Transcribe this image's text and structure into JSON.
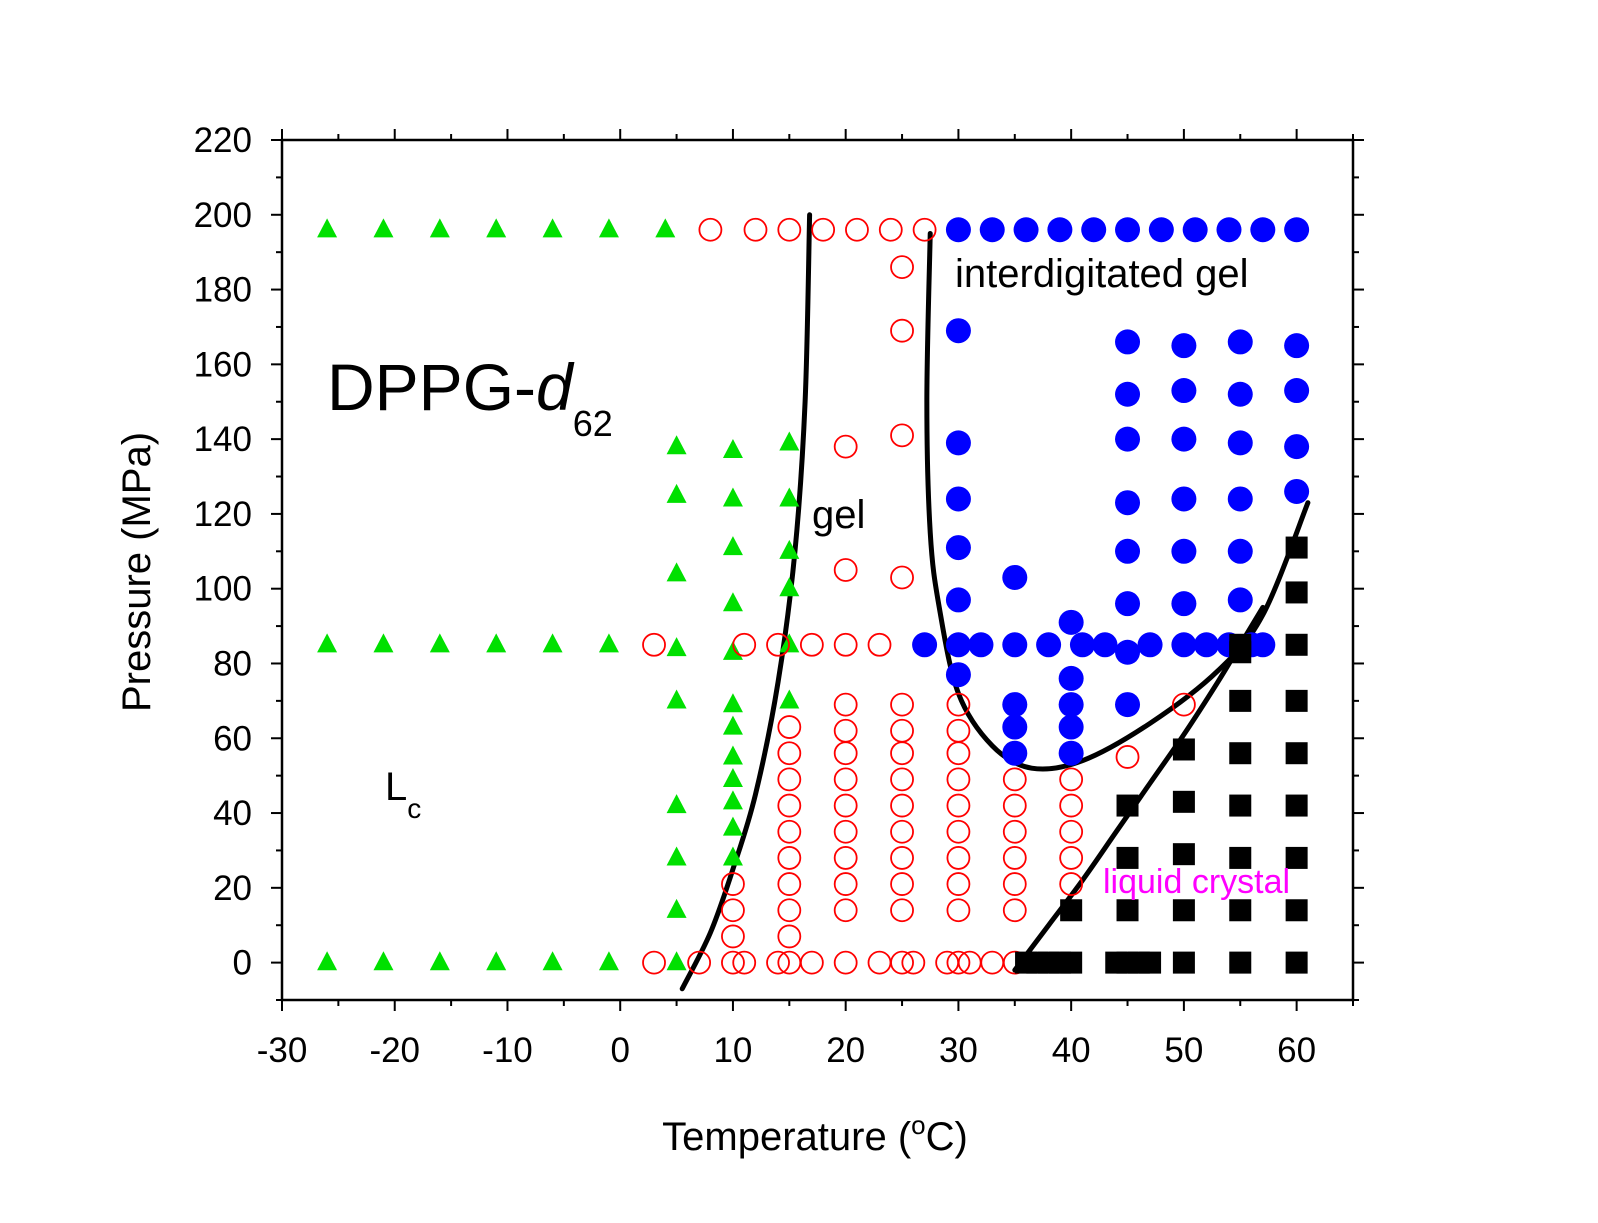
{
  "chart_data": {
    "type": "scatter",
    "title": "",
    "xlabel": "Temperature (",
    "xlabel_degree": "o",
    "xlabel_unit": "C)",
    "ylabel": "Pressure (MPa)",
    "xlim": [
      -30,
      65
    ],
    "ylim": [
      -10,
      220
    ],
    "x_ticks": [
      "-30",
      "-20",
      "-10",
      "0",
      "10",
      "20",
      "30",
      "40",
      "50",
      "60"
    ],
    "y_ticks": [
      "0",
      "20",
      "40",
      "60",
      "80",
      "100",
      "120",
      "140",
      "160",
      "180",
      "200",
      "220"
    ],
    "grid": false,
    "legend": "none",
    "sample_label": {
      "main": "DPPG-",
      "italic": "d",
      "subscript": "62"
    },
    "annotations": {
      "interdigitated": "interdigitated gel",
      "gel": "gel",
      "lc_main": "L",
      "lc_sub": "c",
      "liquid_crystal": "liquid crystal"
    },
    "colors": {
      "lc_phase": "#00e000",
      "gel_phase": "#ff0000",
      "interdigitated_phase": "#0000ff",
      "liquid_crystal_phase": "#000000",
      "liquid_crystal_label": "#ff00ff",
      "boundary": "#000000"
    },
    "series": [
      {
        "marker": "triangle",
        "color": "#00e000",
        "points": [
          [
            -26,
            196
          ],
          [
            -21,
            196
          ],
          [
            -16,
            196
          ],
          [
            -11,
            196
          ],
          [
            -6,
            196
          ],
          [
            -1,
            196
          ],
          [
            4,
            196
          ],
          [
            -26,
            85
          ],
          [
            -21,
            85
          ],
          [
            -16,
            85
          ],
          [
            -11,
            85
          ],
          [
            -6,
            85
          ],
          [
            -1,
            85
          ],
          [
            -26,
            0
          ],
          [
            -21,
            0
          ],
          [
            -16,
            0
          ],
          [
            -11,
            0
          ],
          [
            -6,
            0
          ],
          [
            -1,
            0
          ],
          [
            5,
            0
          ],
          [
            5,
            138
          ],
          [
            10,
            137
          ],
          [
            15,
            139
          ],
          [
            5,
            125
          ],
          [
            10,
            124
          ],
          [
            15,
            124
          ],
          [
            10,
            111
          ],
          [
            15,
            110
          ],
          [
            5,
            104
          ],
          [
            15,
            100
          ],
          [
            10,
            96
          ],
          [
            5,
            84
          ],
          [
            10,
            83
          ],
          [
            15,
            85
          ],
          [
            5,
            70
          ],
          [
            10,
            69
          ],
          [
            15,
            70
          ],
          [
            10,
            63
          ],
          [
            10,
            55
          ],
          [
            10,
            49
          ],
          [
            5,
            42
          ],
          [
            10,
            43
          ],
          [
            10,
            36
          ],
          [
            5,
            28
          ],
          [
            10,
            28
          ],
          [
            5,
            14
          ]
        ]
      },
      {
        "marker": "open-circle",
        "color": "#ff0000",
        "points": [
          [
            8,
            196
          ],
          [
            12,
            196
          ],
          [
            15,
            196
          ],
          [
            18,
            196
          ],
          [
            21,
            196
          ],
          [
            24,
            196
          ],
          [
            27,
            196
          ],
          [
            25,
            186
          ],
          [
            25,
            169
          ],
          [
            25,
            141
          ],
          [
            20,
            138
          ],
          [
            20,
            105
          ],
          [
            25,
            103
          ],
          [
            3,
            85
          ],
          [
            11,
            85
          ],
          [
            14,
            85
          ],
          [
            17,
            85
          ],
          [
            20,
            85
          ],
          [
            23,
            85
          ],
          [
            15,
            63
          ],
          [
            20,
            69
          ],
          [
            25,
            69
          ],
          [
            30,
            69
          ],
          [
            15,
            56
          ],
          [
            20,
            62
          ],
          [
            25,
            62
          ],
          [
            30,
            62
          ],
          [
            15,
            49
          ],
          [
            20,
            56
          ],
          [
            25,
            56
          ],
          [
            30,
            56
          ],
          [
            15,
            42
          ],
          [
            20,
            49
          ],
          [
            25,
            49
          ],
          [
            30,
            49
          ],
          [
            35,
            49
          ],
          [
            40,
            49
          ],
          [
            15,
            35
          ],
          [
            20,
            42
          ],
          [
            25,
            42
          ],
          [
            30,
            42
          ],
          [
            35,
            42
          ],
          [
            40,
            42
          ],
          [
            15,
            28
          ],
          [
            20,
            35
          ],
          [
            25,
            35
          ],
          [
            30,
            35
          ],
          [
            35,
            35
          ],
          [
            40,
            35
          ],
          [
            10,
            21
          ],
          [
            15,
            21
          ],
          [
            20,
            28
          ],
          [
            25,
            28
          ],
          [
            30,
            28
          ],
          [
            35,
            28
          ],
          [
            40,
            28
          ],
          [
            10,
            14
          ],
          [
            15,
            14
          ],
          [
            20,
            21
          ],
          [
            25,
            21
          ],
          [
            30,
            21
          ],
          [
            35,
            21
          ],
          [
            40,
            21
          ],
          [
            10,
            7
          ],
          [
            15,
            7
          ],
          [
            20,
            14
          ],
          [
            25,
            14
          ],
          [
            30,
            14
          ],
          [
            35,
            14
          ],
          [
            45,
            55
          ],
          [
            50,
            69
          ],
          [
            3,
            0
          ],
          [
            7,
            0
          ],
          [
            10,
            0
          ],
          [
            11,
            0
          ],
          [
            14,
            0
          ],
          [
            15,
            0
          ],
          [
            17,
            0
          ],
          [
            20,
            0
          ],
          [
            23,
            0
          ],
          [
            25,
            0
          ],
          [
            26,
            0
          ],
          [
            29,
            0
          ],
          [
            30,
            0
          ],
          [
            31,
            0
          ],
          [
            33,
            0
          ],
          [
            35,
            0
          ]
        ]
      },
      {
        "marker": "filled-circle",
        "color": "#0000ff",
        "points": [
          [
            30,
            196
          ],
          [
            33,
            196
          ],
          [
            36,
            196
          ],
          [
            39,
            196
          ],
          [
            42,
            196
          ],
          [
            45,
            196
          ],
          [
            48,
            196
          ],
          [
            51,
            196
          ],
          [
            54,
            196
          ],
          [
            57,
            196
          ],
          [
            60,
            196
          ],
          [
            30,
            169
          ],
          [
            45,
            166
          ],
          [
            50,
            165
          ],
          [
            55,
            166
          ],
          [
            60,
            165
          ],
          [
            45,
            152
          ],
          [
            50,
            153
          ],
          [
            55,
            152
          ],
          [
            60,
            153
          ],
          [
            30,
            139
          ],
          [
            45,
            140
          ],
          [
            50,
            140
          ],
          [
            55,
            139
          ],
          [
            60,
            138
          ],
          [
            30,
            124
          ],
          [
            45,
            123
          ],
          [
            50,
            124
          ],
          [
            55,
            124
          ],
          [
            60,
            126
          ],
          [
            30,
            111
          ],
          [
            45,
            110
          ],
          [
            50,
            110
          ],
          [
            55,
            110
          ],
          [
            35,
            103
          ],
          [
            30,
            97
          ],
          [
            45,
            96
          ],
          [
            50,
            96
          ],
          [
            55,
            97
          ],
          [
            40,
            91
          ],
          [
            27,
            85
          ],
          [
            30,
            85
          ],
          [
            32,
            85
          ],
          [
            35,
            85
          ],
          [
            38,
            85
          ],
          [
            41,
            85
          ],
          [
            43,
            85
          ],
          [
            45,
            83
          ],
          [
            47,
            85
          ],
          [
            50,
            85
          ],
          [
            52,
            85
          ],
          [
            54,
            85
          ],
          [
            56,
            85
          ],
          [
            57,
            85
          ],
          [
            30,
            77
          ],
          [
            40,
            76
          ],
          [
            35,
            69
          ],
          [
            40,
            69
          ],
          [
            45,
            69
          ],
          [
            35,
            63
          ],
          [
            40,
            63
          ],
          [
            35,
            56
          ],
          [
            40,
            56
          ]
        ]
      },
      {
        "marker": "filled-square",
        "color": "#000000",
        "points": [
          [
            60,
            111
          ],
          [
            60,
            99
          ],
          [
            55,
            85
          ],
          [
            60,
            85
          ],
          [
            55,
            83
          ],
          [
            55,
            70
          ],
          [
            60,
            70
          ],
          [
            50,
            57
          ],
          [
            55,
            56
          ],
          [
            60,
            56
          ],
          [
            45,
            42
          ],
          [
            50,
            43
          ],
          [
            55,
            42
          ],
          [
            60,
            42
          ],
          [
            45,
            28
          ],
          [
            50,
            29
          ],
          [
            55,
            28
          ],
          [
            60,
            28
          ],
          [
            40,
            14
          ],
          [
            45,
            14
          ],
          [
            50,
            14
          ],
          [
            55,
            14
          ],
          [
            60,
            14
          ],
          [
            36,
            0
          ],
          [
            37,
            0
          ],
          [
            38,
            0
          ],
          [
            39,
            0
          ],
          [
            40,
            0
          ],
          [
            44,
            0
          ],
          [
            45,
            0
          ],
          [
            46,
            0
          ],
          [
            47,
            0
          ],
          [
            50,
            0
          ],
          [
            55,
            0
          ],
          [
            60,
            0
          ]
        ]
      }
    ],
    "boundaries": [
      {
        "points": [
          [
            5.5,
            -7
          ],
          [
            8,
            8
          ],
          [
            10,
            25
          ],
          [
            12,
            45
          ],
          [
            14,
            75
          ],
          [
            15.5,
            110
          ],
          [
            16.4,
            150
          ],
          [
            16.8,
            200
          ]
        ]
      },
      {
        "points": [
          [
            27.5,
            195
          ],
          [
            27.2,
            150
          ],
          [
            27.5,
            115
          ],
          [
            28.3,
            95
          ],
          [
            30,
            72
          ],
          [
            33,
            58
          ],
          [
            36.5,
            52
          ],
          [
            41,
            54
          ],
          [
            47,
            64
          ],
          [
            53,
            78
          ],
          [
            57,
            93
          ],
          [
            61,
            123
          ]
        ]
      },
      {
        "points": [
          [
            35,
            -2
          ],
          [
            38,
            10
          ],
          [
            41,
            22
          ],
          [
            44,
            35
          ],
          [
            47,
            48
          ],
          [
            50,
            61
          ],
          [
            53,
            75
          ],
          [
            55,
            85
          ],
          [
            57,
            95
          ]
        ]
      }
    ]
  }
}
